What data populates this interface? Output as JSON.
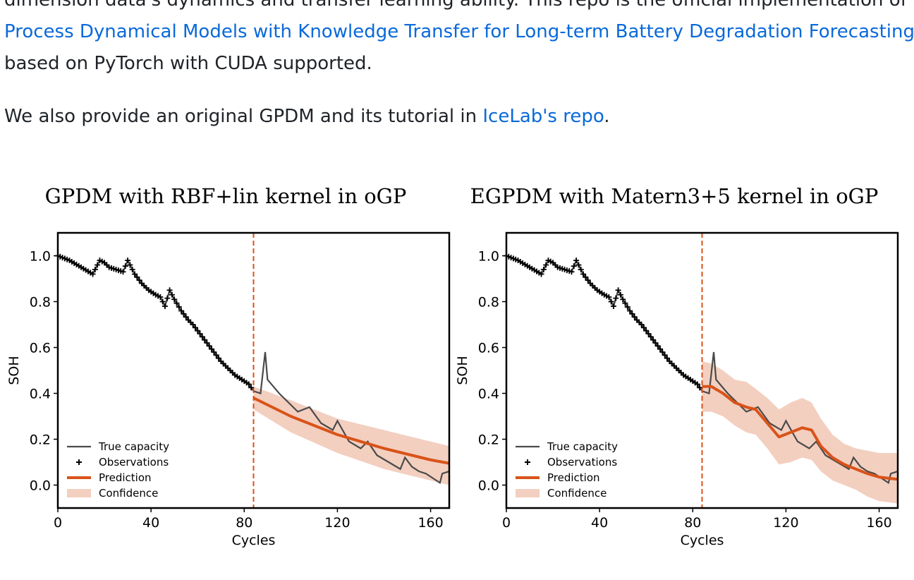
{
  "readme": {
    "line1": "dimension data's dynamics and transfer learning ability. This repo is the official implementation of",
    "link_paper": "Process Dynamical Models with Knowledge Transfer for Long-term Battery Degradation Forecasting",
    "line2": "based on PyTorch with CUDA supported.",
    "line3_prefix": "We also provide an original GPDM and its tutorial in ",
    "link_icelab": "IceLab's repo",
    "line3_suffix": "."
  },
  "colors": {
    "link": "#0969da",
    "true_capacity": "#4a4a4a",
    "prediction": "#d95319",
    "confidence": "#f3cfc0",
    "split_line": "#d95319"
  },
  "legend": {
    "true_capacity": "True capacity",
    "observations": "Observations",
    "prediction": "Prediction",
    "confidence": "Confidence"
  },
  "chart_data": [
    {
      "type": "line",
      "title": "GPDM with RBF+lin kernel in oGP",
      "xlabel": "Cycles",
      "ylabel": "SOH",
      "xlim": [
        0,
        168
      ],
      "ylim": [
        -0.1,
        1.1
      ],
      "xticks": [
        "0",
        "40",
        "80",
        "120",
        "160"
      ],
      "yticks": [
        "0.0",
        "0.2",
        "0.4",
        "0.6",
        "0.8",
        "1.0"
      ],
      "split_x": 84,
      "series": [
        {
          "name": "True capacity",
          "x": [
            0,
            5,
            10,
            15,
            18,
            20,
            22,
            25,
            28,
            30,
            33,
            36,
            39,
            42,
            44,
            46,
            48,
            50,
            53,
            56,
            58,
            61,
            64,
            67,
            70,
            73,
            76,
            79,
            82,
            84,
            87,
            89,
            90,
            95,
            100,
            103,
            108,
            113,
            118,
            120,
            125,
            130,
            133,
            137,
            142,
            147,
            149,
            152,
            155,
            158,
            161,
            164,
            165,
            168
          ],
          "y": [
            1.0,
            0.98,
            0.95,
            0.92,
            0.98,
            0.97,
            0.95,
            0.94,
            0.93,
            0.98,
            0.92,
            0.88,
            0.85,
            0.83,
            0.82,
            0.78,
            0.85,
            0.81,
            0.76,
            0.72,
            0.7,
            0.66,
            0.62,
            0.58,
            0.54,
            0.51,
            0.48,
            0.46,
            0.44,
            0.41,
            0.4,
            0.58,
            0.46,
            0.4,
            0.35,
            0.32,
            0.34,
            0.27,
            0.24,
            0.28,
            0.19,
            0.16,
            0.19,
            0.13,
            0.1,
            0.07,
            0.12,
            0.08,
            0.06,
            0.05,
            0.03,
            0.01,
            0.05,
            0.06
          ]
        },
        {
          "name": "Prediction",
          "x": [
            84,
            100,
            120,
            140,
            160,
            168
          ],
          "y": [
            0.38,
            0.3,
            0.22,
            0.16,
            0.11,
            0.095
          ]
        }
      ],
      "confidence": {
        "x": [
          84,
          100,
          120,
          140,
          160,
          168
        ],
        "upper": [
          0.43,
          0.37,
          0.29,
          0.24,
          0.19,
          0.17
        ],
        "lower": [
          0.33,
          0.23,
          0.14,
          0.07,
          0.02,
          0.0
        ]
      },
      "legend_position": "lower-left"
    },
    {
      "type": "line",
      "title": "EGPDM with Matern3+5 kernel in oGP",
      "xlabel": "Cycles",
      "ylabel": "SOH",
      "xlim": [
        0,
        168
      ],
      "ylim": [
        -0.1,
        1.1
      ],
      "xticks": [
        "0",
        "40",
        "80",
        "120",
        "160"
      ],
      "yticks": [
        "0.0",
        "0.2",
        "0.4",
        "0.6",
        "0.8",
        "1.0"
      ],
      "split_x": 84,
      "series": [
        {
          "name": "True capacity",
          "x": [
            0,
            5,
            10,
            15,
            18,
            20,
            22,
            25,
            28,
            30,
            33,
            36,
            39,
            42,
            44,
            46,
            48,
            50,
            53,
            56,
            58,
            61,
            64,
            67,
            70,
            73,
            76,
            79,
            82,
            84,
            87,
            89,
            90,
            95,
            100,
            103,
            108,
            113,
            118,
            120,
            125,
            130,
            133,
            137,
            142,
            147,
            149,
            152,
            155,
            158,
            161,
            164,
            165,
            168
          ],
          "y": [
            1.0,
            0.98,
            0.95,
            0.92,
            0.98,
            0.97,
            0.95,
            0.94,
            0.93,
            0.98,
            0.92,
            0.88,
            0.85,
            0.83,
            0.82,
            0.78,
            0.85,
            0.81,
            0.76,
            0.72,
            0.7,
            0.66,
            0.62,
            0.58,
            0.54,
            0.51,
            0.48,
            0.46,
            0.44,
            0.41,
            0.4,
            0.58,
            0.46,
            0.4,
            0.35,
            0.32,
            0.34,
            0.27,
            0.24,
            0.28,
            0.19,
            0.16,
            0.19,
            0.13,
            0.1,
            0.07,
            0.12,
            0.08,
            0.06,
            0.05,
            0.03,
            0.01,
            0.05,
            0.06
          ]
        },
        {
          "name": "Prediction",
          "x": [
            84,
            88,
            93,
            98,
            103,
            107,
            112,
            117,
            122,
            127,
            131,
            135,
            140,
            145,
            150,
            155,
            160,
            168
          ],
          "y": [
            0.43,
            0.43,
            0.4,
            0.36,
            0.34,
            0.33,
            0.27,
            0.21,
            0.23,
            0.25,
            0.24,
            0.17,
            0.12,
            0.09,
            0.07,
            0.05,
            0.035,
            0.025
          ]
        }
      ],
      "confidence": {
        "x": [
          84,
          88,
          93,
          98,
          103,
          107,
          112,
          117,
          122,
          127,
          131,
          135,
          140,
          145,
          150,
          155,
          160,
          168
        ],
        "upper": [
          0.54,
          0.53,
          0.5,
          0.46,
          0.45,
          0.42,
          0.38,
          0.33,
          0.36,
          0.38,
          0.36,
          0.29,
          0.22,
          0.18,
          0.16,
          0.15,
          0.14,
          0.14
        ],
        "lower": [
          0.32,
          0.32,
          0.3,
          0.26,
          0.23,
          0.22,
          0.16,
          0.09,
          0.1,
          0.12,
          0.11,
          0.06,
          0.02,
          0.0,
          -0.02,
          -0.05,
          -0.07,
          -0.08
        ]
      },
      "legend_position": "lower-left"
    }
  ]
}
